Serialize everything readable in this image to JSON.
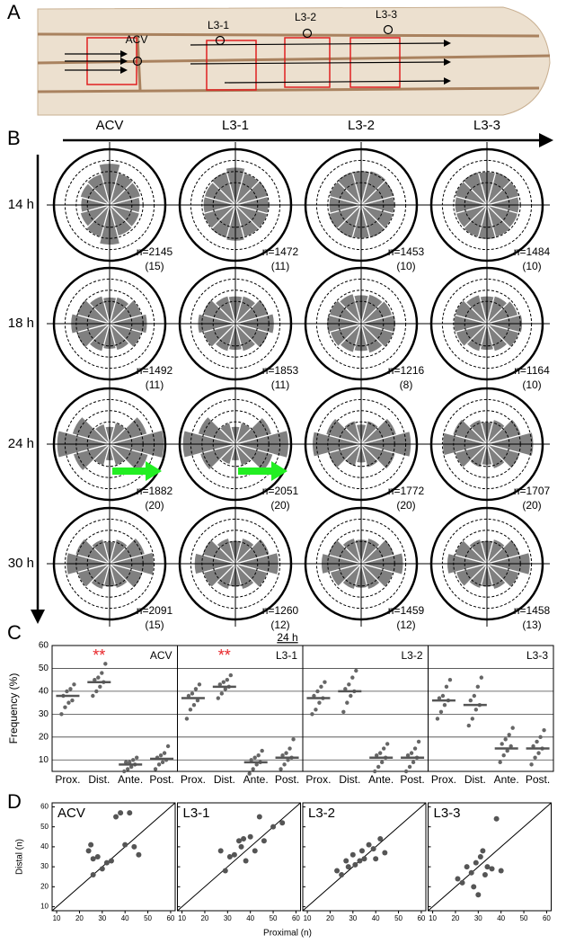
{
  "panel_labels": [
    "A",
    "B",
    "C",
    "D"
  ],
  "wing": {
    "labels": [
      "ACV",
      "L3-1",
      "L3-2",
      "L3-3"
    ]
  },
  "chart_data": [
    {
      "type": "rose",
      "columns": [
        "ACV",
        "L3-1",
        "L3-2",
        "L3-3"
      ],
      "rows": [
        "14 h",
        "18 h",
        "24 h",
        "30 h"
      ],
      "rlim": [
        0,
        100
      ],
      "rticks": [
        40,
        60,
        80
      ],
      "bins": [
        0,
        30,
        60,
        90,
        120,
        150,
        180,
        210,
        240,
        270,
        300,
        330
      ],
      "color": "#808080",
      "plots": [
        [
          {
            "n": "n=2145",
            "count": "(15)",
            "values": [
              55,
              58,
              60,
              75,
              58,
              55,
              52,
              55,
              60,
              72,
              58,
              56
            ]
          },
          {
            "n": "n=1472",
            "count": "(11)",
            "values": [
              60,
              62,
              60,
              68,
              62,
              58,
              58,
              60,
              62,
              65,
              60,
              60
            ]
          },
          {
            "n": "n=1453",
            "count": "(10)",
            "values": [
              60,
              62,
              64,
              62,
              62,
              60,
              58,
              62,
              62,
              60,
              62,
              60
            ]
          },
          {
            "n": "n=1484",
            "count": "(10)",
            "values": [
              58,
              60,
              62,
              60,
              62,
              60,
              58,
              58,
              60,
              62,
              60,
              58
            ]
          }
        ],
        [
          {
            "n": "n=1492",
            "count": "(11)",
            "values": [
              68,
              60,
              50,
              48,
              52,
              62,
              70,
              62,
              52,
              46,
              50,
              60
            ]
          },
          {
            "n": "n=1853",
            "count": "(11)",
            "values": [
              70,
              62,
              52,
              50,
              52,
              62,
              68,
              60,
              52,
              48,
              52,
              62
            ]
          },
          {
            "n": "n=1216",
            "count": "(8)",
            "values": [
              62,
              58,
              55,
              52,
              56,
              60,
              62,
              58,
              54,
              50,
              55,
              60
            ]
          },
          {
            "n": "n=1164",
            "count": "(10)",
            "values": [
              64,
              58,
              52,
              50,
              54,
              60,
              60,
              58,
              52,
              48,
              52,
              60
            ]
          }
        ],
        [
          {
            "n": "n=1882",
            "count": "(20)",
            "values": [
              98,
              70,
              40,
              32,
              38,
              70,
              95,
              68,
              40,
              30,
              40,
              72
            ]
          },
          {
            "n": "n=2051",
            "count": "(20)",
            "values": [
              96,
              68,
              40,
              32,
              40,
              70,
              95,
              66,
              38,
              30,
              40,
              70
            ]
          },
          {
            "n": "n=1772",
            "count": "(20)",
            "values": [
              90,
              66,
              44,
              36,
              44,
              66,
              88,
              62,
              42,
              34,
              44,
              64
            ]
          },
          {
            "n": "n=1707",
            "count": "(20)",
            "values": [
              84,
              64,
              46,
              40,
              46,
              64,
              80,
              60,
              44,
              38,
              46,
              62
            ]
          }
        ],
        [
          {
            "n": "n=2091",
            "count": "(15)",
            "values": [
              80,
              66,
              46,
              40,
              46,
              64,
              78,
              60,
              48,
              42,
              46,
              62
            ]
          },
          {
            "n": "n=1260",
            "count": "(12)",
            "values": [
              78,
              64,
              48,
              42,
              48,
              62,
              74,
              60,
              48,
              42,
              48,
              60
            ]
          },
          {
            "n": "n=1459",
            "count": "(12)",
            "values": [
              76,
              62,
              48,
              44,
              48,
              62,
              72,
              58,
              48,
              44,
              48,
              60
            ]
          },
          {
            "n": "n=1458",
            "count": "(13)",
            "values": [
              78,
              62,
              46,
              42,
              46,
              60,
              72,
              58,
              46,
              42,
              48,
              60
            ]
          }
        ]
      ]
    },
    {
      "type": "strip",
      "title": "24 h",
      "y_label": "Frequency (%)",
      "categories": [
        "Prox.",
        "Dist.",
        "Ante.",
        "Post."
      ],
      "ylim": [
        5,
        60
      ],
      "yticks": [
        10,
        20,
        30,
        40,
        50,
        60
      ],
      "color": "#666666",
      "star_color": "#e8262a",
      "subplots": [
        {
          "label": "ACV",
          "stars": "**",
          "means": [
            38,
            44,
            8,
            10.5
          ],
          "points": [
            [
              30,
              33,
              35,
              36,
              38,
              40,
              41,
              43
            ],
            [
              38,
              40,
              42,
              44,
              45,
              46,
              48,
              52
            ],
            [
              5,
              6,
              7,
              8,
              9,
              9,
              10,
              11
            ],
            [
              6,
              8,
              9,
              10,
              11,
              12,
              13,
              16
            ]
          ]
        },
        {
          "label": "L3-1",
          "stars": "**",
          "means": [
            37,
            42,
            9,
            11
          ],
          "points": [
            [
              28,
              32,
              34,
              36,
              38,
              39,
              41,
              43
            ],
            [
              37,
              39,
              41,
              42,
              43,
              44,
              45,
              47
            ],
            [
              4,
              6,
              8,
              9,
              10,
              11,
              12,
              14
            ],
            [
              6,
              8,
              10,
              11,
              12,
              13,
              15,
              19
            ]
          ]
        },
        {
          "label": "L3-2",
          "means": [
            37,
            40,
            11,
            11
          ],
          "points": [
            [
              30,
              32,
              35,
              37,
              38,
              40,
              42,
              44
            ],
            [
              31,
              35,
              38,
              40,
              41,
              43,
              46,
              49
            ],
            [
              5,
              7,
              9,
              11,
              12,
              13,
              15,
              17
            ],
            [
              5,
              7,
              9,
              11,
              12,
              13,
              15,
              18
            ]
          ]
        },
        {
          "label": "L3-3",
          "means": [
            36,
            34,
            15,
            15
          ],
          "points": [
            [
              28,
              31,
              34,
              36,
              37,
              38,
              42,
              45
            ],
            [
              25,
              28,
              32,
              34,
              36,
              38,
              42,
              46
            ],
            [
              9,
              12,
              14,
              16,
              17,
              19,
              21,
              24
            ],
            [
              8,
              11,
              13,
              15,
              16,
              18,
              20,
              23
            ]
          ]
        }
      ]
    },
    {
      "type": "scatter",
      "x_label": "Proximal (n)",
      "y_label": "Distal (n)",
      "xlim": [
        8,
        62
      ],
      "ylim": [
        8,
        62
      ],
      "xticks": [
        10,
        20,
        30,
        40,
        50,
        60
      ],
      "yticks": [
        10,
        20,
        30,
        40,
        50,
        60
      ],
      "color": "#555555",
      "subplots": [
        {
          "label": "ACV",
          "x": [
            24,
            25,
            26,
            28,
            30,
            32,
            34,
            36,
            38,
            40,
            42,
            44,
            46,
            26
          ],
          "y": [
            38,
            41,
            26,
            35,
            29,
            32,
            33,
            55,
            57,
            41,
            57,
            40,
            36,
            34
          ]
        },
        {
          "label": "L3-1",
          "x": [
            27,
            29,
            31,
            33,
            35,
            36,
            37,
            38,
            40,
            42,
            44,
            46,
            50,
            54
          ],
          "y": [
            38,
            28,
            35,
            36,
            43,
            40,
            44,
            33,
            45,
            38,
            55,
            43,
            50,
            52
          ]
        },
        {
          "label": "L3-2",
          "x": [
            23,
            25,
            27,
            28,
            30,
            31,
            33,
            34,
            35,
            37,
            39,
            40,
            42,
            44
          ],
          "y": [
            28,
            26,
            33,
            30,
            36,
            31,
            33,
            38,
            34,
            41,
            39,
            34,
            44,
            37
          ]
        },
        {
          "label": "L3-3",
          "x": [
            21,
            23,
            25,
            27,
            28,
            29,
            30,
            31,
            32,
            33,
            34,
            36,
            38,
            40
          ],
          "y": [
            24,
            22,
            30,
            27,
            20,
            32,
            16,
            35,
            38,
            26,
            30,
            29,
            54,
            28
          ]
        }
      ]
    }
  ]
}
